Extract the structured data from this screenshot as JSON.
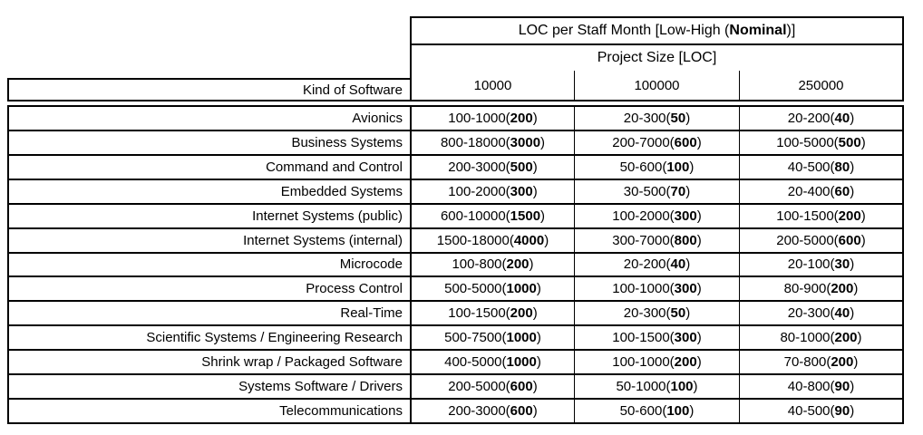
{
  "table": {
    "header": {
      "title": [
        "LOC per Staff Month [Low-High (",
        "Nominal",
        ")]"
      ],
      "subtitle": "Project Size [LOC]",
      "kind_label": "Kind of Software",
      "sizes": [
        "10000",
        "100000",
        "250000"
      ]
    },
    "rows": [
      {
        "kind": "Avionics",
        "cells": [
          [
            "100-1000(",
            "200",
            ")"
          ],
          [
            "20-300(",
            "50",
            ")"
          ],
          [
            "20-200(",
            "40",
            ")"
          ]
        ]
      },
      {
        "kind": "Business Systems",
        "cells": [
          [
            "800-18000(",
            "3000",
            ")"
          ],
          [
            "200-7000(",
            "600",
            ")"
          ],
          [
            "100-5000(",
            "500",
            ")"
          ]
        ]
      },
      {
        "kind": "Command and Control",
        "cells": [
          [
            "200-3000(",
            "500",
            ")"
          ],
          [
            "50-600(",
            "100",
            ")"
          ],
          [
            "40-500(",
            "80",
            ")"
          ]
        ]
      },
      {
        "kind": "Embedded Systems",
        "cells": [
          [
            "100-2000(",
            "300",
            ")"
          ],
          [
            "30-500(",
            "70",
            ")"
          ],
          [
            "20-400(",
            "60",
            ")"
          ]
        ]
      },
      {
        "kind": "Internet Systems (public)",
        "cells": [
          [
            "600-10000(",
            "1500",
            ")"
          ],
          [
            "100-2000(",
            "300",
            ")"
          ],
          [
            "100-1500(",
            "200",
            ")"
          ]
        ]
      },
      {
        "kind": "Internet Systems (internal)",
        "cells": [
          [
            "1500-18000(",
            "4000",
            ")"
          ],
          [
            "300-7000(",
            "800",
            ")"
          ],
          [
            "200-5000(",
            "600",
            ")"
          ]
        ]
      },
      {
        "kind": "Microcode",
        "cells": [
          [
            "100-800(",
            "200",
            ")"
          ],
          [
            "20-200(",
            "40",
            ")"
          ],
          [
            "20-100(",
            "30",
            ")"
          ]
        ]
      },
      {
        "kind": "Process Control",
        "cells": [
          [
            "500-5000(",
            "1000",
            ")"
          ],
          [
            "100-1000(",
            "300",
            ")"
          ],
          [
            "80-900(",
            "200",
            ")"
          ]
        ]
      },
      {
        "kind": "Real-Time",
        "cells": [
          [
            "100-1500(",
            "200",
            ")"
          ],
          [
            "20-300(",
            "50",
            ")"
          ],
          [
            "20-300(",
            "40",
            ")"
          ]
        ]
      },
      {
        "kind": "Scientific Systems / Engineering Research",
        "cells": [
          [
            "500-7500(",
            "1000",
            ")"
          ],
          [
            "100-1500(",
            "300",
            ")"
          ],
          [
            "80-1000(",
            "200",
            ")"
          ]
        ]
      },
      {
        "kind": "Shrink wrap / Packaged Software",
        "cells": [
          [
            "400-5000(",
            "1000",
            ")"
          ],
          [
            "100-1000(",
            "200",
            ")"
          ],
          [
            "70-800(",
            "200",
            ")"
          ]
        ]
      },
      {
        "kind": "Systems Software / Drivers",
        "cells": [
          [
            "200-5000(",
            "600",
            ")"
          ],
          [
            "50-1000(",
            "100",
            ")"
          ],
          [
            "40-800(",
            "90",
            ")"
          ]
        ]
      },
      {
        "kind": "Telecommunications",
        "cells": [
          [
            "200-3000(",
            "600",
            ")"
          ],
          [
            "50-600(",
            "100",
            ")"
          ],
          [
            "40-500(",
            "90",
            ")"
          ]
        ]
      }
    ]
  }
}
